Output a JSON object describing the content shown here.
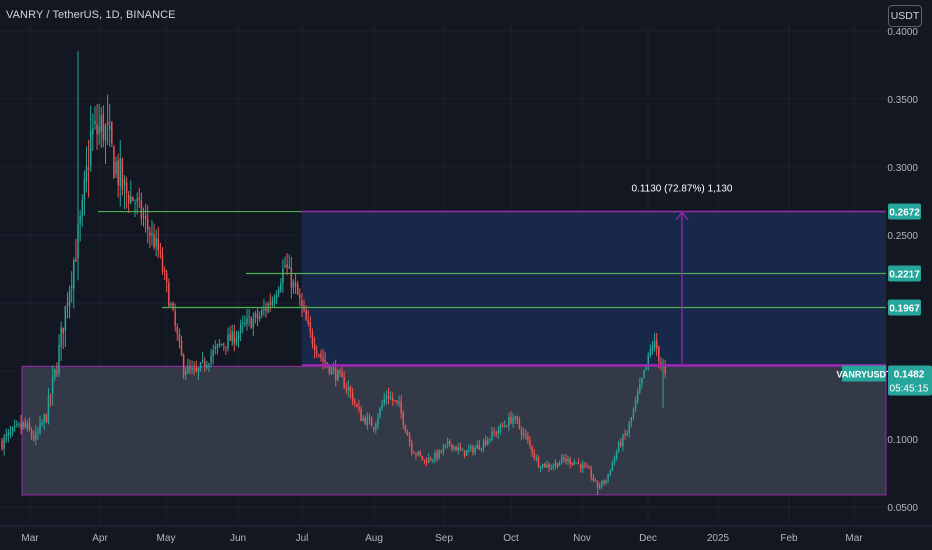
{
  "header": {
    "title": "VANRY / TetherUS, 1D, BINANCE"
  },
  "currency_button": {
    "label": "USDT"
  },
  "colors": {
    "background": "#131722",
    "up": "#26a69a",
    "down": "#ef5350",
    "range_fill": "#3a3f4d",
    "target_fill": "#1a2a4e",
    "purple": "#9c27b0",
    "level_green": "#4caf50",
    "axis_text": "#b2b5be"
  },
  "chart_data": {
    "type": "candlestick",
    "symbol": "VANRYUSDT",
    "ylim": [
      0.045,
      0.405
    ],
    "y_ticks": [
      "0.0500",
      "0.1000",
      "0.1500",
      "0.2000",
      "0.2500",
      "0.3000",
      "0.3500",
      "0.4000"
    ],
    "x_ticks": [
      "Mar",
      "Apr",
      "May",
      "Jun",
      "Jul",
      "Aug",
      "Sep",
      "Oct",
      "Nov",
      "Dec",
      "2025",
      "Feb",
      "Mar"
    ],
    "last_price": {
      "symbol": "VANRYUSDT",
      "value": "0.1482",
      "countdown": "05:45:15"
    },
    "levels": [
      {
        "value": 0.2672,
        "label": "0.2672",
        "from_month": "Apr"
      },
      {
        "value": 0.2217,
        "label": "0.2217",
        "from_month": "Jun"
      },
      {
        "value": 0.1967,
        "label": "0.1967",
        "from_month": "May"
      }
    ],
    "range_box": {
      "from_month": "Feb",
      "to_month": "Mar",
      "low": 0.059,
      "high": 0.1535
    },
    "target_box": {
      "from_month": "Jul",
      "to_month": "Mar",
      "low": 0.1542,
      "high": 0.2672
    },
    "measure": {
      "label": "0.1130 (72.87%) 1,130",
      "from": 0.1542,
      "to": 0.2672,
      "at_month": "Dec"
    },
    "anchors": [
      [
        0,
        0.098
      ],
      [
        10,
        0.11
      ],
      [
        16,
        0.1
      ],
      [
        21,
        0.118
      ],
      [
        26,
        0.155
      ],
      [
        32,
        0.215
      ],
      [
        38,
        0.265
      ],
      [
        42,
        0.322
      ],
      [
        48,
        0.33
      ],
      [
        53,
        0.305
      ],
      [
        58,
        0.282
      ],
      [
        63,
        0.275
      ],
      [
        69,
        0.255
      ],
      [
        74,
        0.238
      ],
      [
        80,
        0.197
      ],
      [
        86,
        0.152
      ],
      [
        92,
        0.148
      ],
      [
        98,
        0.16
      ],
      [
        104,
        0.17
      ],
      [
        110,
        0.175
      ],
      [
        116,
        0.185
      ],
      [
        122,
        0.19
      ],
      [
        128,
        0.203
      ],
      [
        134,
        0.228
      ],
      [
        140,
        0.205
      ],
      [
        146,
        0.176
      ],
      [
        152,
        0.158
      ],
      [
        158,
        0.148
      ],
      [
        164,
        0.137
      ],
      [
        170,
        0.116
      ],
      [
        176,
        0.11
      ],
      [
        182,
        0.133
      ],
      [
        188,
        0.124
      ],
      [
        194,
        0.093
      ],
      [
        200,
        0.084
      ],
      [
        206,
        0.088
      ],
      [
        212,
        0.097
      ],
      [
        218,
        0.09
      ],
      [
        224,
        0.093
      ],
      [
        230,
        0.1
      ],
      [
        236,
        0.108
      ],
      [
        242,
        0.116
      ],
      [
        248,
        0.101
      ],
      [
        254,
        0.082
      ],
      [
        260,
        0.08
      ],
      [
        266,
        0.085
      ],
      [
        272,
        0.083
      ],
      [
        278,
        0.076
      ],
      [
        282,
        0.065
      ],
      [
        286,
        0.07
      ],
      [
        292,
        0.095
      ],
      [
        296,
        0.105
      ],
      [
        300,
        0.126
      ],
      [
        304,
        0.148
      ],
      [
        308,
        0.17
      ],
      [
        310,
        0.167
      ],
      [
        312,
        0.155
      ],
      [
        314,
        0.1482
      ]
    ]
  }
}
